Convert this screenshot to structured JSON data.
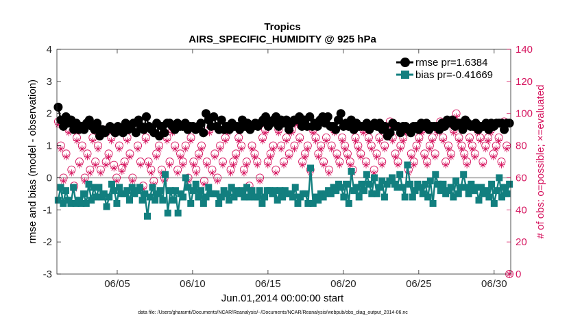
{
  "chart_data": {
    "type": "line",
    "title": "Tropics",
    "subtitle": "AIRS_SPECIFIC_HUMIDITY @ 925 hPa",
    "xlabel": "Jun.01,2014 00:00:00 start",
    "ylabel_left": "rmse and bias (model - observation)",
    "ylabel_right": "# of obs: o=possible; ×=evaluated",
    "footnote": "data file: /Users/gharamti/Documents/NCAR/Reanalysis/~/Documents/NCAR/Reanalysis/webpub/obs_diag_output_2014-06.nc",
    "xlim": [
      1.0,
      31.1
    ],
    "ylim_left": [
      -3,
      4
    ],
    "ylim_right": [
      0,
      140
    ],
    "xticks": [
      5,
      10,
      15,
      20,
      25,
      30
    ],
    "xtick_labels": [
      "06/05",
      "06/10",
      "06/15",
      "06/20",
      "06/25",
      "06/30"
    ],
    "yticks_left": [
      "-3",
      "-2",
      "-1",
      "0",
      "1",
      "2",
      "3",
      "4"
    ],
    "yticks_right": [
      "0",
      "20",
      "40",
      "60",
      "80",
      "100",
      "120",
      "140"
    ],
    "zero_line": 0,
    "colors": {
      "rmse": "#000000",
      "bias": "#127f7f",
      "obs": "#d6155f",
      "zero": "#a8a8a8"
    },
    "legend_position": "top-right",
    "series": [
      {
        "name": "rmse",
        "legend": "rmse pr=1.6384",
        "axis": "left",
        "marker": "circle",
        "values": [
          2.2,
          1.8,
          1.6,
          1.9,
          1.7,
          1.8,
          1.5,
          1.7,
          1.5,
          1.6,
          1.5,
          1.7,
          1.8,
          1.6,
          1.5,
          1.7,
          1.3,
          1.5,
          1.4,
          1.5,
          1.6,
          1.5,
          1.4,
          1.6,
          1.5,
          1.4,
          1.7,
          1.5,
          1.6,
          1.7,
          1.4,
          1.8,
          1.6,
          1.5,
          1.9,
          1.6,
          1.5,
          1.4,
          1.7,
          1.3,
          1.6,
          1.4,
          1.7,
          1.7,
          1.6,
          1.5,
          1.7,
          1.6,
          1.6,
          1.7,
          1.5,
          1.6,
          1.6,
          1.5,
          1.6,
          1.7,
          1.4,
          2.0,
          1.8,
          1.6,
          1.9,
          1.6,
          1.5,
          1.8,
          1.5,
          1.6,
          1.5,
          1.7,
          1.6,
          1.6,
          1.5,
          1.8,
          1.6,
          1.7,
          1.5,
          1.6,
          1.7,
          1.6,
          1.7,
          1.8,
          1.9,
          1.6,
          1.7,
          1.8,
          1.9,
          1.6,
          1.8,
          1.7,
          1.8,
          1.5,
          1.7,
          1.8,
          1.8,
          1.9,
          1.6,
          1.8,
          1.6,
          1.9,
          1.6,
          1.7,
          1.6,
          1.8,
          1.9,
          1.7,
          1.9,
          1.6,
          1.6,
          1.5,
          1.8,
          2.0,
          1.6,
          1.7,
          1.6,
          1.8,
          1.5,
          1.7,
          1.6,
          1.6,
          1.6,
          1.7,
          1.5,
          1.6,
          1.7,
          1.6,
          1.7,
          1.5,
          1.6,
          1.3,
          1.4,
          1.7,
          1.6,
          1.6,
          1.4,
          1.6,
          1.6,
          1.5,
          1.4,
          1.6,
          1.6,
          1.5,
          1.7,
          1.6,
          1.7,
          1.5,
          1.6,
          1.6,
          1.6,
          1.5,
          1.7,
          1.6,
          1.8,
          1.7,
          1.8,
          1.6,
          1.7,
          1.7,
          1.5,
          1.8,
          1.7,
          1.6,
          1.6,
          1.7,
          1.5,
          1.6,
          1.6,
          1.7,
          1.5,
          1.7,
          1.6,
          1.7,
          1.7,
          1.7,
          1.5,
          1.7,
          1.7
        ]
      },
      {
        "name": "bias",
        "legend": "bias pr=-0.41669",
        "axis": "left",
        "marker": "square",
        "values": [
          -0.7,
          -0.3,
          -0.8,
          -0.4,
          -0.7,
          -0.8,
          -0.3,
          -0.8,
          -0.7,
          -0.8,
          -0.5,
          -0.8,
          -0.2,
          -0.7,
          -0.3,
          -0.6,
          -0.3,
          -0.6,
          -0.5,
          -0.9,
          -0.6,
          -0.2,
          -0.4,
          -0.8,
          -0.3,
          -0.5,
          -0.5,
          -0.4,
          -0.7,
          -0.3,
          -0.5,
          -0.4,
          -0.3,
          -0.7,
          -0.5,
          -1.2,
          -0.6,
          -0.3,
          -0.7,
          -0.5,
          -0.4,
          -0.7,
          0.1,
          -1.1,
          -0.4,
          -0.7,
          -0.4,
          -1.1,
          -0.5,
          -0.6,
          0.0,
          -0.3,
          -0.8,
          -0.4,
          -0.2,
          -0.6,
          -0.4,
          -0.8,
          -0.6,
          -0.3,
          -0.5,
          -0.5,
          -0.5,
          -0.8,
          -0.6,
          -0.4,
          -0.5,
          -0.7,
          -0.3,
          -0.6,
          -0.4,
          -0.5,
          -0.4,
          -0.6,
          -0.3,
          -0.6,
          -0.4,
          -0.6,
          -0.6,
          -0.4,
          -0.8,
          -0.6,
          -0.4,
          -0.4,
          -0.5,
          -0.4,
          -0.7,
          -0.4,
          -0.6,
          -0.4,
          -0.5,
          -0.5,
          -0.6,
          -0.3,
          -0.8,
          -0.6,
          -0.5,
          -0.5,
          -0.8,
          0.3,
          -0.8,
          -0.6,
          -0.7,
          -0.5,
          -0.6,
          -0.5,
          -0.4,
          -0.5,
          -0.3,
          -0.4,
          -0.2,
          -0.3,
          -0.6,
          -0.2,
          -0.8,
          0.2,
          -0.4,
          -0.3,
          -0.6,
          -0.2,
          -0.4,
          0.1,
          -0.2,
          -0.5,
          0.0,
          -0.5,
          -0.3,
          -0.1,
          -0.6,
          -0.2,
          -0.1,
          0.0,
          -0.2,
          -0.3,
          0.1,
          -0.3,
          -0.6,
          0.4,
          -0.2,
          -0.6,
          -0.4,
          -0.2,
          -0.3,
          -0.5,
          -0.2,
          -0.6,
          -0.1,
          -0.8,
          0.1,
          -0.2,
          -0.4,
          -0.2,
          -0.5,
          -0.4,
          -0.3,
          -0.6,
          -0.1,
          -0.5,
          -0.3,
          0.1,
          -0.3,
          -0.5,
          -0.2,
          -0.4,
          -0.3,
          -0.7,
          -0.3,
          -0.5,
          -0.4,
          -0.6,
          -0.2,
          -0.8,
          -0.4,
          0.0,
          -0.6,
          -0.3,
          -0.5,
          -0.2
        ]
      },
      {
        "name": "possible",
        "axis": "right",
        "marker": "open-circle",
        "values": [
          95,
          80,
          60,
          75,
          90,
          65,
          55,
          85,
          70,
          80,
          60,
          75,
          65,
          85,
          70,
          80,
          65,
          90,
          70,
          75,
          85,
          68,
          60,
          80,
          66,
          70,
          85,
          75,
          60,
          90,
          80,
          70,
          55,
          85,
          70,
          65,
          58,
          75,
          80,
          65,
          60,
          85,
          70,
          90,
          80,
          65,
          75,
          70,
          80,
          60,
          85,
          70,
          65,
          75,
          80,
          58,
          70,
          90,
          65,
          75,
          60,
          80,
          70,
          85,
          90,
          65,
          70,
          75,
          85,
          80,
          65,
          70,
          55,
          80,
          75,
          70,
          60,
          85,
          90,
          70,
          75,
          80,
          65,
          90,
          80,
          70,
          85,
          75,
          90,
          80,
          95,
          85,
          70,
          75,
          80,
          65,
          90,
          85,
          75,
          80,
          70,
          85,
          65,
          80,
          90,
          75,
          70,
          85,
          80,
          75,
          70,
          65,
          85,
          80,
          75,
          90,
          70,
          85,
          80,
          65,
          75,
          85,
          70,
          80,
          90,
          95,
          85,
          75,
          70,
          80,
          85,
          90,
          65,
          75,
          70,
          80,
          85,
          90,
          75,
          70,
          80,
          85,
          75,
          90,
          95,
          85,
          70,
          80,
          75,
          90,
          100,
          85,
          80,
          75,
          70,
          85,
          80,
          75,
          90,
          85,
          70,
          80,
          85,
          90,
          75,
          80,
          85,
          70,
          95,
          80,
          0
        ]
      },
      {
        "name": "evaluated",
        "axis": "right",
        "marker": "asterisk",
        "values": [
          93,
          78,
          58,
          73,
          88,
          63,
          53,
          83,
          68,
          78,
          58,
          73,
          63,
          83,
          68,
          78,
          63,
          88,
          68,
          73,
          83,
          66,
          58,
          78,
          64,
          68,
          83,
          73,
          58,
          88,
          78,
          68,
          53,
          83,
          68,
          63,
          56,
          73,
          78,
          63,
          58,
          83,
          68,
          88,
          78,
          63,
          73,
          68,
          78,
          58,
          83,
          68,
          63,
          73,
          78,
          56,
          68,
          88,
          63,
          73,
          58,
          78,
          68,
          83,
          88,
          63,
          68,
          73,
          83,
          78,
          63,
          68,
          53,
          78,
          73,
          68,
          58,
          83,
          88,
          68,
          73,
          78,
          63,
          88,
          78,
          68,
          83,
          73,
          88,
          78,
          93,
          83,
          68,
          73,
          78,
          63,
          88,
          83,
          73,
          78,
          68,
          83,
          63,
          78,
          88,
          73,
          68,
          83,
          78,
          73,
          68,
          63,
          83,
          78,
          73,
          88,
          68,
          83,
          78,
          63,
          73,
          83,
          68,
          78,
          88,
          93,
          83,
          73,
          68,
          78,
          83,
          88,
          63,
          73,
          68,
          78,
          83,
          88,
          73,
          68,
          78,
          83,
          73,
          88,
          93,
          83,
          68,
          78,
          73,
          88,
          98,
          83,
          78,
          73,
          68,
          83,
          78,
          73,
          88,
          83,
          68,
          78,
          83,
          88,
          73,
          78,
          83,
          68,
          93,
          78,
          0
        ]
      }
    ]
  }
}
